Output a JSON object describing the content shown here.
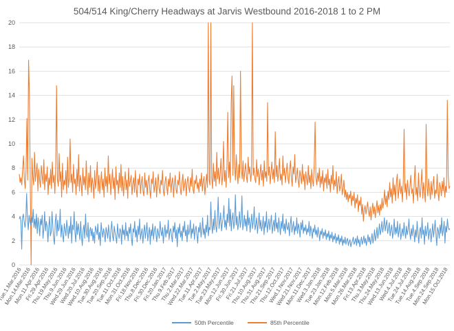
{
  "chart_data": {
    "type": "line",
    "title": "504/514 King/Cherry Headways at Jarvis Westbound 2016-2018 1 to 2 PM",
    "xlabel": "",
    "ylabel": "",
    "ylim": [
      0,
      20
    ],
    "yticks": [
      0,
      2,
      4,
      6,
      8,
      10,
      12,
      14,
      16,
      18,
      20
    ],
    "grid": true,
    "legend": "bottom",
    "x_tick_labels": [
      "Tue.1.Mar.2016",
      "Mon.14.Mar.2016",
      "Mon.11.Apr.2016",
      "Fri.29.Apr.2016",
      "Thu.19.May.2016",
      "Thu.9.Jun.2016",
      "Wed.29.Jun.2016",
      "Wed.20.Jul.2016",
      "Wed.10.Aug.2016",
      "Tue.30.Aug.2016",
      "Tue.20.Sep.2016",
      "Tue.11.Oct.2016",
      "Mon.31.Oct.2016",
      "Fri.18.Nov.2016",
      "Thu.8.Dec.2016",
      "Fri.30.Dec.2016",
      "Fri.20.Jan.2017",
      "Thu.9.Feb.2017",
      "Thu.2.Mar.2017",
      "Wed.22.Mar.2017",
      "Tue.11.Apr.2017",
      "Tue.2.May.2017",
      "Tue.23.May.2017",
      "Mon.12.Jun.2017",
      "Fri.30.Jun.2017",
      "Fri.21.Jul.2017",
      "Thu.10.Aug.2017",
      "Thu.31.Aug.2017",
      "Thu.21.Sep.2017",
      "Thu.12.Oct.2017",
      "Wed.1.Nov.2017",
      "Wed.21.Nov.2017",
      "Mon.11.Dec.2017",
      "Wed.3.Jan.2018",
      "Tue.23.Jan.2018",
      "Mon.12.Feb.2018",
      "Mon.5.Mar.2018",
      "Mon.26.Mar.2018",
      "Fri.13.Apr.2018",
      "Thu.3.May.2018",
      "Thu.24.May.2018",
      "Wed.13.Jun.2018",
      "Wed.4.Jul.2018",
      "Tue.24.Jul.2018",
      "Tue.14.Aug.2018",
      "Tue.4.Sep.2018",
      "Mon.24.Sep.2018",
      "Mon.15.Oct.2018"
    ],
    "series": [
      {
        "name": "50th Percentile",
        "color": "#5b9bd5",
        "values": [
          3.8,
          4.0,
          3.6,
          1.3,
          3.9,
          4.2,
          3.6,
          3.1,
          3.7,
          5.9,
          3.9,
          2.9,
          4.1,
          3.6,
          3.3,
          4.0,
          3.5,
          4.6,
          3.1,
          3.8,
          3.0,
          4.2,
          2.6,
          3.9,
          3.3,
          2.4,
          3.8,
          3.3,
          4.1,
          2.2,
          3.0,
          4.4,
          2.8,
          3.6,
          3.2,
          1.9,
          3.1,
          4.0,
          2.4,
          2.7,
          4.4,
          3.2,
          2.2,
          1.7,
          3.6,
          4.2,
          2.4,
          3.7,
          2.8,
          3.1,
          4.6,
          2.3,
          3.3,
          2.5,
          1.9,
          3.4,
          2.9,
          2.4,
          3.7,
          3.0,
          2.2,
          3.2,
          2.6,
          4.0,
          1.8,
          3.3,
          2.9,
          4.4,
          2.7,
          1.9,
          3.6,
          2.5,
          3.4,
          2.8,
          2.1,
          3.6,
          2.4,
          1.6,
          2.9,
          3.3,
          2.2,
          4.2,
          2.6,
          2.3,
          3.5,
          1.9,
          2.8,
          3.1,
          2.4,
          3.0,
          2.0,
          2.7,
          1.8,
          3.2,
          2.9,
          2.5,
          3.4,
          2.1,
          2.7,
          1.6,
          3.5,
          2.8,
          2.3,
          3.0,
          2.6,
          1.9,
          3.1,
          2.7,
          2.2,
          3.3,
          2.5,
          1.9,
          2.9,
          3.6,
          2.4,
          2.0,
          3.2,
          2.7,
          2.3,
          1.8,
          3.4,
          2.6,
          2.2,
          3.0,
          2.8,
          1.7,
          3.3,
          2.5,
          2.9,
          2.1,
          3.5,
          2.4,
          2.8,
          2.0,
          3.1,
          2.6,
          3.4,
          2.2,
          1.6,
          3.0,
          2.7,
          3.6,
          2.3,
          2.9,
          1.9,
          3.2,
          2.5,
          3.8,
          2.1,
          2.6,
          3.0,
          1.8,
          2.7,
          3.3,
          2.2,
          2.8,
          3.5,
          2.0,
          2.6,
          3.1,
          1.7,
          2.9,
          2.4,
          3.4,
          2.1,
          2.8,
          3.2,
          2.5,
          1.9,
          3.0,
          2.6,
          2.2,
          3.6,
          2.8,
          2.4,
          3.1,
          1.8,
          2.7,
          3.3,
          2.3,
          2.9,
          2.6,
          3.7,
          2.1,
          2.8,
          3.0,
          2.4,
          1.9,
          3.2,
          2.7,
          3.5,
          2.2,
          2.9,
          1.5,
          3.1,
          2.6,
          3.4,
          2.3,
          2.8,
          2.0,
          3.2,
          2.7,
          3.6,
          2.4,
          2.9,
          1.9,
          3.3,
          2.5,
          2.8,
          3.7,
          2.2,
          3.0,
          2.6,
          3.4,
          2.1,
          2.9,
          3.2,
          2.5,
          1.8,
          3.1,
          2.7,
          3.5,
          2.3,
          2.8,
          3.9,
          2.5,
          3.0,
          2.2,
          3.3,
          2.7,
          4.1,
          2.4,
          3.1,
          2.9,
          5.2,
          3.3,
          2.6,
          3.8,
          2.9,
          4.5,
          3.2,
          2.7,
          3.9,
          5.6,
          3.0,
          3.6,
          4.3,
          2.8,
          3.4,
          3.9,
          4.9,
          3.1,
          3.7,
          2.9,
          4.2,
          3.5,
          5.5,
          3.2,
          4.6,
          2.8,
          3.8,
          4.3,
          3.0,
          3.6,
          5.8,
          3.3,
          4.0,
          2.9,
          3.5,
          4.4,
          3.1,
          3.7,
          5.7,
          2.9,
          3.4,
          4.1,
          3.2,
          3.8,
          2.8,
          4.5,
          3.3,
          3.9,
          2.7,
          3.5,
          4.2,
          3.0,
          3.6,
          4.8,
          2.9,
          3.3,
          3.9,
          2.6,
          3.4,
          4.3,
          3.0,
          3.7,
          2.8,
          3.2,
          4.0,
          2.5,
          3.6,
          3.1,
          4.4,
          2.7,
          3.3,
          3.8,
          2.9,
          3.5,
          4.1,
          2.6,
          3.2,
          3.7,
          2.8,
          4.3,
          3.0,
          3.5,
          2.7,
          3.9,
          3.2,
          2.5,
          3.6,
          3.0,
          4.2,
          2.8,
          3.4,
          2.6,
          3.8,
          3.1,
          2.9,
          3.5,
          2.4,
          3.3,
          4.0,
          2.7,
          3.1,
          3.6,
          2.5,
          3.2,
          2.8,
          3.9,
          2.6,
          3.4,
          3.0,
          2.3,
          3.5,
          2.9,
          3.7,
          2.6,
          3.1,
          2.8,
          3.3,
          2.5,
          3.0,
          2.7,
          3.6,
          2.4,
          3.2,
          2.8,
          2.2,
          3.0,
          2.7,
          3.3,
          2.5,
          2.9,
          2.3,
          3.1,
          2.6,
          2.0,
          2.8,
          2.5,
          3.0,
          2.2,
          2.7,
          2.4,
          2.9,
          2.1,
          2.6,
          2.3,
          2.8,
          2.0,
          2.5,
          2.2,
          2.7,
          1.9,
          2.4,
          2.1,
          2.6,
          1.8,
          2.3,
          2.0,
          2.5,
          1.7,
          2.2,
          1.9,
          2.4,
          1.6,
          2.1,
          1.8,
          2.3,
          1.7,
          2.0,
          2.2,
          1.6,
          1.9,
          2.1,
          1.5,
          1.8,
          2.0,
          2.3,
          1.7,
          1.9,
          2.2,
          1.6,
          2.4,
          1.8,
          2.1,
          1.5,
          1.9,
          2.3,
          1.7,
          2.0,
          2.4,
          1.8,
          2.2,
          1.6,
          2.0,
          2.5,
          1.9,
          2.3,
          1.7,
          2.1,
          2.6,
          1.8,
          2.2,
          2.9,
          2.0,
          2.4,
          3.1,
          2.2,
          2.7,
          3.4,
          2.5,
          2.9,
          3.6,
          2.7,
          3.2,
          3.9,
          2.8,
          3.3,
          3.7,
          2.6,
          3.0,
          3.5,
          2.4,
          2.9,
          3.3,
          2.2,
          2.7,
          3.8,
          2.5,
          3.1,
          2.6,
          3.6,
          2.3,
          2.8,
          3.4,
          2.1,
          2.6,
          3.0,
          2.4,
          3.5,
          2.7,
          2.2,
          3.2,
          2.5,
          2.9,
          3.8,
          2.6,
          2.1,
          3.0,
          2.4,
          3.3,
          2.7,
          1.9,
          2.9,
          2.3,
          3.6,
          2.6,
          1.8,
          2.8,
          3.1,
          2.2,
          3.9,
          2.5,
          2.9,
          1.7,
          3.2,
          2.4,
          2.8,
          3.5,
          2.1,
          2.7,
          3.0,
          1.9,
          2.6,
          3.4,
          2.3,
          2.9,
          3.7,
          2.5,
          1.6,
          3.1,
          2.8,
          2.2,
          3.3,
          2.6,
          3.9,
          2.4,
          2.9,
          3.6,
          1.8,
          3.2,
          2.7,
          3.8,
          3.1,
          2.9,
          3.0
        ]
      },
      {
        "name": "85th Percentile",
        "color": "#ed7d31",
        "values": [
          7.5,
          6.8,
          7.2,
          6.6,
          7.9,
          9.0,
          7.1,
          6.3,
          7.8,
          12.1,
          7.0,
          16.9,
          14.1,
          6.5,
          0.0,
          8.8,
          7.3,
          6.6,
          9.3,
          6.9,
          7.7,
          8.4,
          6.1,
          7.9,
          7.0,
          6.4,
          8.2,
          7.4,
          6.7,
          8.7,
          6.2,
          7.5,
          6.9,
          8.1,
          5.8,
          7.2,
          6.6,
          7.9,
          6.3,
          8.5,
          6.8,
          7.4,
          5.9,
          8.2,
          14.8,
          7.1,
          6.5,
          9.2,
          6.9,
          7.7,
          5.6,
          8.4,
          6.2,
          7.0,
          6.6,
          7.8,
          5.9,
          8.9,
          6.4,
          7.2,
          10.4,
          6.8,
          7.5,
          6.0,
          8.3,
          6.7,
          7.1,
          5.8,
          7.9,
          6.5,
          9.1,
          6.1,
          7.4,
          6.8,
          5.7,
          8.0,
          6.6,
          7.3,
          6.2,
          8.6,
          6.9,
          5.8,
          7.6,
          6.4,
          8.2,
          6.0,
          7.2,
          6.7,
          5.5,
          7.8,
          6.3,
          7.0,
          8.5,
          6.1,
          7.4,
          5.9,
          6.8,
          7.7,
          6.2,
          7.1,
          5.6,
          8.0,
          6.5,
          7.3,
          6.0,
          9.0,
          6.7,
          7.5,
          5.8,
          6.9,
          7.9,
          6.3,
          7.2,
          5.4,
          8.1,
          6.6,
          7.0,
          5.9,
          7.6,
          6.4,
          8.3,
          6.1,
          7.3,
          5.7,
          6.8,
          7.7,
          6.2,
          7.0,
          5.5,
          8.0,
          6.5,
          6.9,
          7.4,
          5.8,
          6.7,
          7.2,
          6.0,
          7.8,
          6.3,
          5.6,
          7.1,
          6.6,
          7.5,
          5.9,
          6.8,
          7.3,
          6.1,
          5.7,
          7.6,
          6.4,
          7.0,
          5.8,
          6.9,
          7.4,
          6.2,
          5.5,
          7.1,
          6.7,
          7.7,
          6.0,
          6.5,
          7.2,
          5.6,
          6.8,
          7.5,
          6.3,
          5.9,
          7.0,
          6.6,
          7.8,
          6.1,
          5.7,
          6.9,
          7.3,
          6.4,
          5.8,
          7.1,
          6.5,
          7.6,
          6.0,
          6.8,
          7.2,
          5.6,
          6.7,
          7.4,
          6.2,
          5.9,
          7.0,
          6.6,
          7.7,
          6.3,
          5.8,
          6.9,
          7.5,
          6.1,
          6.6,
          7.1,
          5.7,
          6.8,
          7.3,
          6.4,
          6.0,
          7.2,
          6.5,
          7.9,
          6.2,
          5.9,
          7.0,
          6.7,
          7.4,
          6.3,
          6.8,
          6.0,
          7.1,
          6.5,
          7.6,
          6.1,
          6.9,
          7.3,
          5.8,
          6.7,
          7.5,
          6.4,
          20.0,
          7.0,
          6.6,
          20.0,
          7.2,
          6.3,
          8.4,
          6.9,
          7.7,
          6.5,
          9.3,
          7.1,
          8.0,
          6.7,
          7.5,
          8.8,
          6.6,
          7.3,
          10.2,
          6.9,
          7.8,
          6.4,
          8.1,
          12.6,
          7.2,
          8.5,
          6.8,
          13.4,
          15.6,
          7.4,
          14.8,
          8.2,
          7.0,
          9.1,
          7.6,
          6.7,
          8.3,
          7.2,
          16.0,
          7.9,
          7.1,
          8.6,
          6.9,
          7.7,
          8.4,
          7.3,
          6.8,
          8.9,
          7.5,
          8.1,
          6.9,
          7.6,
          20.0,
          7.4,
          8.0,
          7.1,
          6.8,
          8.7,
          7.3,
          7.9,
          6.6,
          7.5,
          8.3,
          7.0,
          7.8,
          6.5,
          8.6,
          7.2,
          7.7,
          6.9,
          13.4,
          7.4,
          8.1,
          6.7,
          7.6,
          8.5,
          7.1,
          7.9,
          6.8,
          11.0,
          7.3,
          8.2,
          6.9,
          7.7,
          8.8,
          7.0,
          7.5,
          6.6,
          9.0,
          7.4,
          8.0,
          6.8,
          7.6,
          8.4,
          7.1,
          6.7,
          7.9,
          8.6,
          7.2,
          6.5,
          8.1,
          7.5,
          9.1,
          6.8,
          7.3,
          8.0,
          7.0,
          6.4,
          7.8,
          7.3,
          6.7,
          8.3,
          6.9,
          7.5,
          6.2,
          7.7,
          7.1,
          6.6,
          8.2,
          6.8,
          7.4,
          6.3,
          7.9,
          7.0,
          6.5,
          8.4,
          11.8,
          7.2,
          6.6,
          7.6,
          6.9,
          8.0,
          6.4,
          7.3,
          6.7,
          7.8,
          6.1,
          7.2,
          6.8,
          7.5,
          6.3,
          7.9,
          6.6,
          7.1,
          6.0,
          7.4,
          6.7,
          8.2,
          6.2,
          7.0,
          6.5,
          7.7,
          5.9,
          6.8,
          7.3,
          6.1,
          6.6,
          7.5,
          5.8,
          6.3,
          7.0,
          5.6,
          6.2,
          5.4,
          6.0,
          5.2,
          5.8,
          5.5,
          6.1,
          4.9,
          5.7,
          5.3,
          6.0,
          4.7,
          5.5,
          5.1,
          5.8,
          4.4,
          5.3,
          4.9,
          5.6,
          4.2,
          5.0,
          3.6,
          4.6,
          4.9,
          4.2,
          4.7,
          5.2,
          4.4,
          4.0,
          4.8,
          3.7,
          4.5,
          5.1,
          4.2,
          4.8,
          3.9,
          4.6,
          5.3,
          4.3,
          4.9,
          4.1,
          5.0,
          4.5,
          5.5,
          4.7,
          5.2,
          6.2,
          5.0,
          5.7,
          4.8,
          6.1,
          5.4,
          6.8,
          5.6,
          6.3,
          5.1,
          7.2,
          5.8,
          6.6,
          5.3,
          6.9,
          7.5,
          5.5,
          6.2,
          7.1,
          5.9,
          6.5,
          5.2,
          6.8,
          11.2,
          6.0,
          6.7,
          5.4,
          7.0,
          6.2,
          5.7,
          6.6,
          7.4,
          5.9,
          6.3,
          5.1,
          6.9,
          8.2,
          5.8,
          6.4,
          5.3,
          7.6,
          6.1,
          5.6,
          6.7,
          7.9,
          5.5,
          6.8,
          6.0,
          5.2,
          11.6,
          6.5,
          5.7,
          7.1,
          6.3,
          5.4,
          6.9,
          5.8,
          6.6,
          7.3,
          5.5,
          6.2,
          5.9,
          7.5,
          6.0,
          5.3,
          6.8,
          6.4,
          5.7,
          6.9,
          6.1,
          7.2,
          5.6,
          6.5,
          6.0,
          13.6,
          7.4,
          6.3,
          6.5
        ]
      }
    ]
  }
}
